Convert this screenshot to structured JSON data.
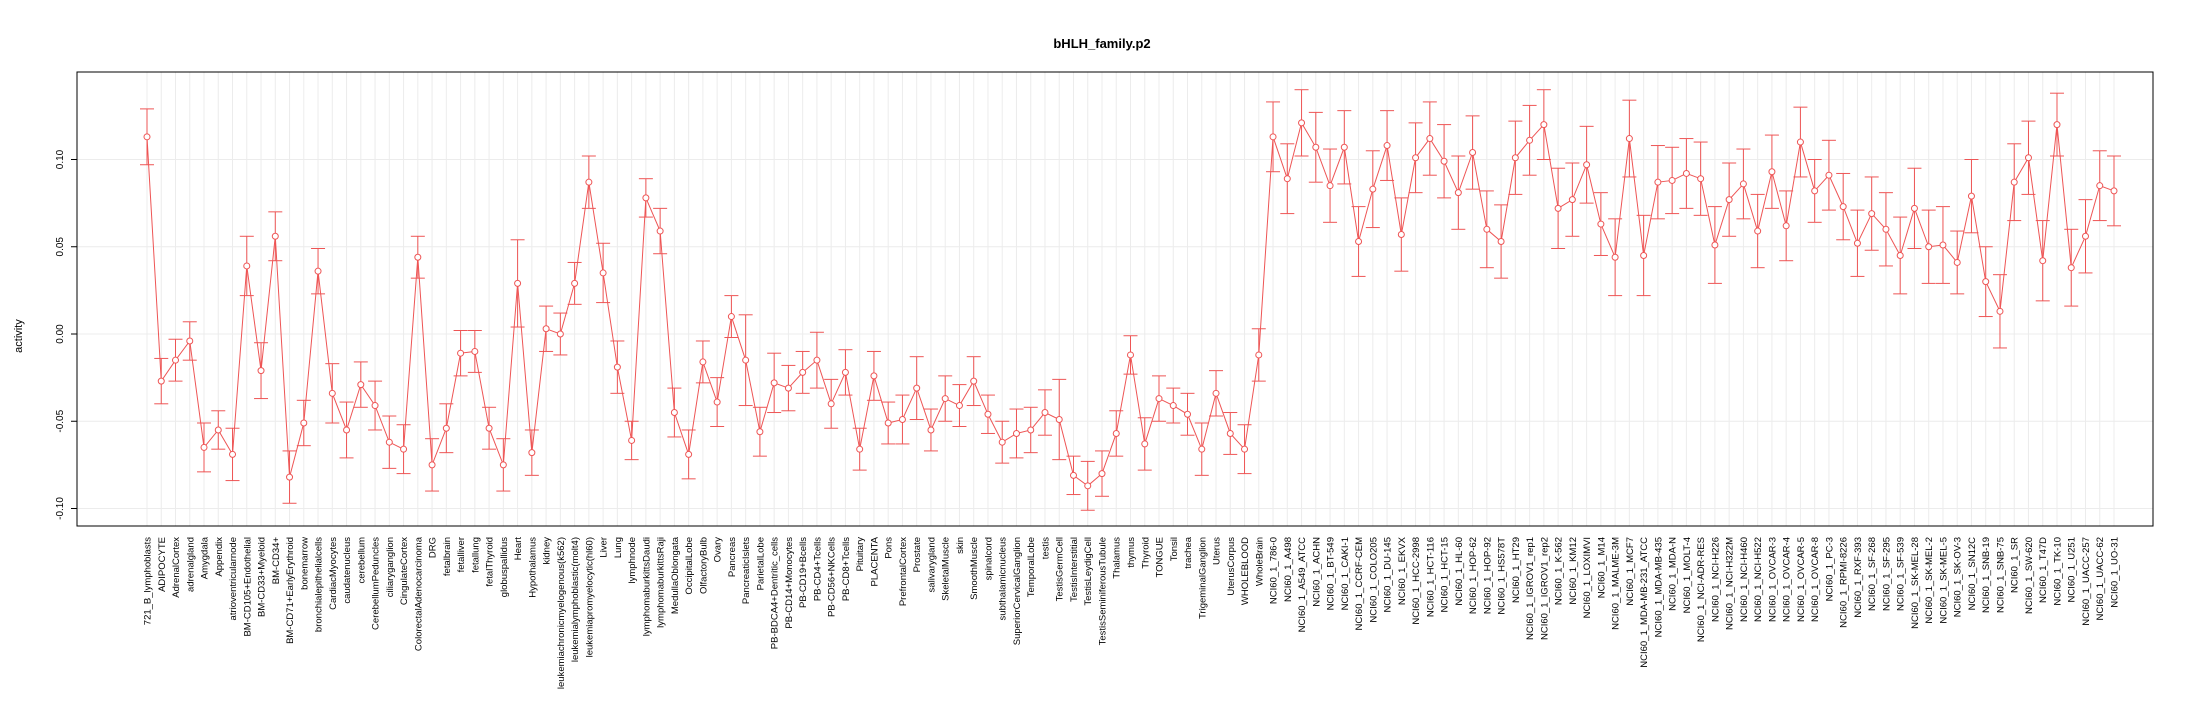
{
  "chart_data": {
    "type": "line",
    "title": "bHLH_family.p2",
    "xlabel": "",
    "ylabel": "activity",
    "ylim": [
      -0.1,
      0.15
    ],
    "yticks": [
      0.1,
      0.05,
      0.0,
      -0.05,
      -0.1
    ],
    "ytick_labels": [
      "0.10",
      "0.05",
      "0.00",
      "-0.05",
      "-0.10"
    ],
    "grid": true,
    "error_bars": true,
    "line_color": "#ee5555",
    "categories": [
      "721_B_lymphoblasts",
      "ADIPOCYTE",
      "AdrenalCortex",
      "adrenalgland",
      "Amygdala",
      "Appendix",
      "atrioventricularnode",
      "BM-CD105+Endothelial",
      "BM-CD33+Myeloid",
      "BM-CD34+",
      "BM-CD71+EarlyErythroid",
      "bonemarrow",
      "bronchialepithelialcells",
      "CardiacMyocytes",
      "caudatenucleus",
      "cerebellum",
      "CerebellumPeduncles",
      "ciliaryganglion",
      "CingulateCortex",
      "ColorectalAdenocarcinoma",
      "DRG",
      "fetalbrain",
      "fetalliver",
      "fetallung",
      "fetalThyroid",
      "globuspallidus",
      "Heart",
      "Hypothalamus",
      "kidney",
      "leukemiachronicmyelogenous(k562)",
      "leukemialymphoblastic(molt4)",
      "leukemiapromyelocytic(hl60)",
      "Liver",
      "Lung",
      "lymphnode",
      "lymphomaburkittsDaudi",
      "lymphomaburkittsRaji",
      "MedullaOblongata",
      "OccipitalLobe",
      "OlfactoryBulb",
      "Ovary",
      "Pancreas",
      "PancreaticIslets",
      "ParietalLobe",
      "PB-BDCA4+Dentritic_cells",
      "PB-CD14+Monocytes",
      "PB-CD19+Bcells",
      "PB-CD4+Tcells",
      "PB-CD56+NKCells",
      "PB-CD8+Tcells",
      "Pituitary",
      "PLACENTA",
      "Pons",
      "PrefrontalCortex",
      "Prostate",
      "salivarygland",
      "SkeletalMuscle",
      "skin",
      "SmoothMuscle",
      "spinalcord",
      "subthalamicnucleus",
      "SuperiorCervicalGanglion",
      "TemporalLobe",
      "testis",
      "TestisGermCell",
      "TestisInterstitial",
      "TestisLeydigCell",
      "TestisSeminiferousTubule",
      "Thalamus",
      "thymus",
      "Thyroid",
      "TONGUE",
      "Tonsil",
      "trachea",
      "TrigeminalGanglion",
      "Uterus",
      "UterusCorpus",
      "WHOLEBLOOD",
      "WholeBrain",
      "NCI60_1_786-0",
      "NCI60_1_A498",
      "NCI60_1_A549_ATCC",
      "NCI60_1_ACHN",
      "NCI60_1_BT-549",
      "NCI60_1_CAKI-1",
      "NCI60_1_CCRF-CEM",
      "NCI60_1_COLO205",
      "NCI60_1_DU-145",
      "NCI60_1_EKVX",
      "NCI60_1_HCC-2998",
      "NCI60_1_HCT-116",
      "NCI60_1_HCT-15",
      "NCI60_1_HL-60",
      "NCI60_1_HOP-62",
      "NCI60_1_HOP-92",
      "NCI60_1_HS578T",
      "NCI60_1_HT29",
      "NCI60_1_IGROV1_rep1",
      "NCI60_1_IGROV1_rep2",
      "NCI60_1_K-562",
      "NCI60_1_KM12",
      "NCI60_1_LOXIMVI",
      "NCI60_1_M14",
      "NCI60_1_MALME-3M",
      "NCI60_1_MCF7",
      "NCI60_1_MDA-MB-231_ATCC",
      "NCI60_1_MDA-MB-435",
      "NCI60_1_MDA-N",
      "NCI60_1_MOLT-4",
      "NCI60_1_NCI-ADR-RES",
      "NCI60_1_NCI-H226",
      "NCI60_1_NCI-H322M",
      "NCI60_1_NCI-H460",
      "NCI60_1_NCI-H522",
      "NCI60_1_OVCAR-3",
      "NCI60_1_OVCAR-4",
      "NCI60_1_OVCAR-5",
      "NCI60_1_OVCAR-8",
      "NCI60_1_PC-3",
      "NCI60_1_RPMI-8226",
      "NCI60_1_RXF-393",
      "NCI60_1_SF-268",
      "NCI60_1_SF-295",
      "NCI60_1_SF-539",
      "NCI60_1_SK-MEL-28",
      "NCI60_1_SK-MEL-2",
      "NCI60_1_SK-MEL-5",
      "NCI60_1_SK-OV-3",
      "NCI60_1_SN12C",
      "NCI60_1_SNB-19",
      "NCI60_1_SNB-75",
      "NCI60_1_SR",
      "NCI60_1_SW-620",
      "NCI60_1_T47D",
      "NCI60_1_TK-10",
      "NCI60_1_U251",
      "NCI60_1_UACC-257",
      "NCI60_1_UACC-62",
      "NCI60_1_UO-31"
    ],
    "values": [
      0.113,
      -0.027,
      -0.015,
      -0.004,
      -0.065,
      -0.055,
      -0.069,
      0.039,
      -0.021,
      0.056,
      -0.082,
      -0.051,
      0.036,
      -0.034,
      -0.055,
      -0.029,
      -0.041,
      -0.062,
      -0.066,
      0.044,
      -0.075,
      -0.054,
      -0.011,
      -0.01,
      -0.054,
      -0.075,
      0.029,
      -0.068,
      0.003,
      0.0,
      0.029,
      0.087,
      0.035,
      -0.019,
      -0.061,
      0.078,
      0.059,
      -0.045,
      -0.069,
      -0.016,
      -0.039,
      0.01,
      -0.015,
      -0.056,
      -0.028,
      -0.031,
      -0.022,
      -0.015,
      -0.04,
      -0.022,
      -0.066,
      -0.024,
      -0.051,
      -0.049,
      -0.031,
      -0.055,
      -0.037,
      -0.041,
      -0.027,
      -0.046,
      -0.062,
      -0.057,
      -0.055,
      -0.045,
      -0.049,
      -0.081,
      -0.087,
      -0.08,
      -0.057,
      -0.012,
      -0.063,
      -0.037,
      -0.041,
      -0.046,
      -0.066,
      -0.034,
      -0.057,
      -0.066,
      -0.012,
      0.113,
      0.089,
      0.121,
      0.107,
      0.085,
      0.107,
      0.053,
      0.083,
      0.108,
      0.057,
      0.101,
      0.112,
      0.099,
      0.081,
      0.104,
      0.06,
      0.053,
      0.101,
      0.111,
      0.12,
      0.072,
      0.077,
      0.097,
      0.063,
      0.044,
      0.112,
      0.045,
      0.087,
      0.088,
      0.092,
      0.089,
      0.051,
      0.077,
      0.086,
      0.059,
      0.093,
      0.062,
      0.11,
      0.082,
      0.091,
      0.073,
      0.052,
      0.069,
      0.06,
      0.045,
      0.072,
      0.05,
      0.051,
      0.041,
      0.079,
      0.03,
      0.013,
      0.087,
      0.101,
      0.042,
      0.12,
      0.038,
      0.056,
      0.085,
      0.082
    ],
    "errors": [
      0.016,
      0.013,
      0.012,
      0.011,
      0.014,
      0.011,
      0.015,
      0.017,
      0.016,
      0.014,
      0.015,
      0.013,
      0.013,
      0.017,
      0.016,
      0.013,
      0.014,
      0.015,
      0.014,
      0.012,
      0.015,
      0.014,
      0.013,
      0.012,
      0.012,
      0.015,
      0.025,
      0.013,
      0.013,
      0.012,
      0.012,
      0.015,
      0.017,
      0.015,
      0.011,
      0.011,
      0.013,
      0.014,
      0.014,
      0.012,
      0.014,
      0.012,
      0.026,
      0.014,
      0.017,
      0.013,
      0.012,
      0.016,
      0.014,
      0.013,
      0.012,
      0.014,
      0.012,
      0.014,
      0.018,
      0.012,
      0.013,
      0.012,
      0.014,
      0.011,
      0.012,
      0.014,
      0.013,
      0.013,
      0.023,
      0.011,
      0.014,
      0.013,
      0.013,
      0.011,
      0.015,
      0.013,
      0.01,
      0.012,
      0.015,
      0.013,
      0.012,
      0.014,
      0.015,
      0.02,
      0.02,
      0.019,
      0.02,
      0.021,
      0.021,
      0.02,
      0.022,
      0.02,
      0.021,
      0.02,
      0.021,
      0.021,
      0.021,
      0.021,
      0.022,
      0.021,
      0.021,
      0.02,
      0.02,
      0.023,
      0.021,
      0.022,
      0.018,
      0.022,
      0.022,
      0.023,
      0.021,
      0.019,
      0.02,
      0.021,
      0.022,
      0.021,
      0.02,
      0.021,
      0.021,
      0.02,
      0.02,
      0.018,
      0.02,
      0.019,
      0.019,
      0.021,
      0.021,
      0.022,
      0.023,
      0.021,
      0.022,
      0.018,
      0.021,
      0.02,
      0.021,
      0.022,
      0.021,
      0.023,
      0.018,
      0.022,
      0.021,
      0.02,
      0.02
    ]
  }
}
